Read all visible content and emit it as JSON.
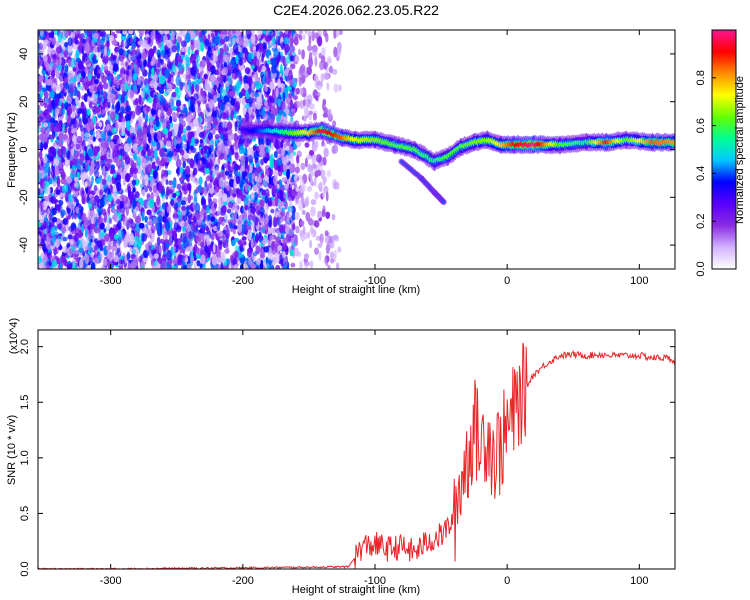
{
  "title": "C2E4.2026.062.23.05.R22",
  "colors": {
    "snr_line": "#e8262a",
    "axis": "#000000",
    "colormap": [
      "#ffffff",
      "#d2b4ff",
      "#8a2be2",
      "#5a00ff",
      "#0000ff",
      "#00c8ff",
      "#00ff96",
      "#64ff00",
      "#ffff00",
      "#ff8c00",
      "#ff0000",
      "#ff1493"
    ]
  },
  "chart_data": [
    {
      "type": "heatmap",
      "xlabel": "Height of straight line (km)",
      "ylabel": "Frequency (Hz)",
      "xlim": [
        -355,
        127
      ],
      "ylim": [
        -50,
        50
      ],
      "xticks": [
        -300,
        -200,
        -100,
        0,
        100
      ],
      "yticks": [
        -40,
        -20,
        0,
        20,
        40
      ],
      "colorbar": {
        "label": "Normalized spectral amplitude",
        "range": [
          0,
          1
        ],
        "ticks": [
          0.0,
          0.2,
          0.4,
          0.6,
          0.8
        ]
      },
      "regions": [
        {
          "x": [
            -355,
            -160
          ],
          "y": [
            -50,
            50
          ],
          "pattern": "scattered",
          "amplitude": 0.25
        },
        {
          "x": [
            -160,
            -135
          ],
          "y": [
            -50,
            50
          ],
          "pattern": "sparse",
          "amplitude": 0.08
        },
        {
          "x": [
            -135,
            -126
          ],
          "y": [
            -50,
            50
          ],
          "pattern": "very sparse",
          "amplitude": 0.05
        }
      ],
      "ridge": [
        {
          "x": -200,
          "y": 8,
          "amp": 0.3
        },
        {
          "x": -180,
          "y": 8,
          "amp": 0.45
        },
        {
          "x": -165,
          "y": 7,
          "amp": 0.6
        },
        {
          "x": -150,
          "y": 7,
          "amp": 0.75
        },
        {
          "x": -140,
          "y": 8,
          "amp": 0.95
        },
        {
          "x": -125,
          "y": 5,
          "amp": 0.85
        },
        {
          "x": -115,
          "y": 4,
          "amp": 0.7
        },
        {
          "x": -100,
          "y": 4,
          "amp": 0.65
        },
        {
          "x": -85,
          "y": 2,
          "amp": 0.6
        },
        {
          "x": -70,
          "y": 0,
          "amp": 0.6
        },
        {
          "x": -55,
          "y": -5,
          "amp": 0.55
        },
        {
          "x": -45,
          "y": -3,
          "amp": 0.6
        },
        {
          "x": -35,
          "y": 1,
          "amp": 0.6
        },
        {
          "x": -25,
          "y": 3,
          "amp": 0.65
        },
        {
          "x": -15,
          "y": 4,
          "amp": 0.65
        },
        {
          "x": -5,
          "y": 2,
          "amp": 0.75
        },
        {
          "x": 5,
          "y": 2,
          "amp": 0.9
        },
        {
          "x": 20,
          "y": 2,
          "amp": 1.0
        },
        {
          "x": 40,
          "y": 2,
          "amp": 0.6
        },
        {
          "x": 60,
          "y": 3,
          "amp": 0.55
        },
        {
          "x": 75,
          "y": 3,
          "amp": 0.9
        },
        {
          "x": 90,
          "y": 4,
          "amp": 0.6
        },
        {
          "x": 110,
          "y": 3,
          "amp": 0.85
        },
        {
          "x": 127,
          "y": 3,
          "amp": 0.8
        }
      ],
      "tail": [
        {
          "x": -80,
          "y": -5
        },
        {
          "x": -65,
          "y": -12
        },
        {
          "x": -55,
          "y": -18
        },
        {
          "x": -48,
          "y": -22
        }
      ]
    },
    {
      "type": "line",
      "xlabel": "Height of straight line (km)",
      "ylabel": "SNR (10 * v/v)",
      "y_multiplier": "(x10^4)",
      "xlim": [
        -355,
        127
      ],
      "ylim": [
        0,
        2.15
      ],
      "xticks": [
        -300,
        -200,
        -100,
        0,
        100
      ],
      "yticks": [
        0.0,
        0.5,
        1.0,
        1.5,
        2.0
      ],
      "series": [
        {
          "x": [
            -355,
            -300,
            -200,
            -120,
            -110,
            -100,
            -90,
            -80,
            -70,
            -60,
            -50,
            -40,
            -35,
            -30,
            -25,
            -20,
            -15,
            -10,
            -5,
            0,
            5,
            10,
            15,
            20,
            30,
            40,
            50,
            60,
            70,
            80,
            90,
            100,
            110,
            120,
            127
          ],
          "y": [
            0.0,
            0.0,
            0.01,
            0.02,
            0.2,
            0.22,
            0.18,
            0.2,
            0.15,
            0.25,
            0.3,
            0.45,
            0.8,
            1.0,
            1.3,
            1.1,
            1.25,
            1.0,
            1.1,
            1.25,
            1.4,
            1.55,
            1.65,
            1.75,
            1.85,
            1.92,
            1.93,
            1.92,
            1.93,
            1.92,
            1.92,
            1.92,
            1.9,
            1.9,
            1.88
          ]
        }
      ]
    }
  ]
}
